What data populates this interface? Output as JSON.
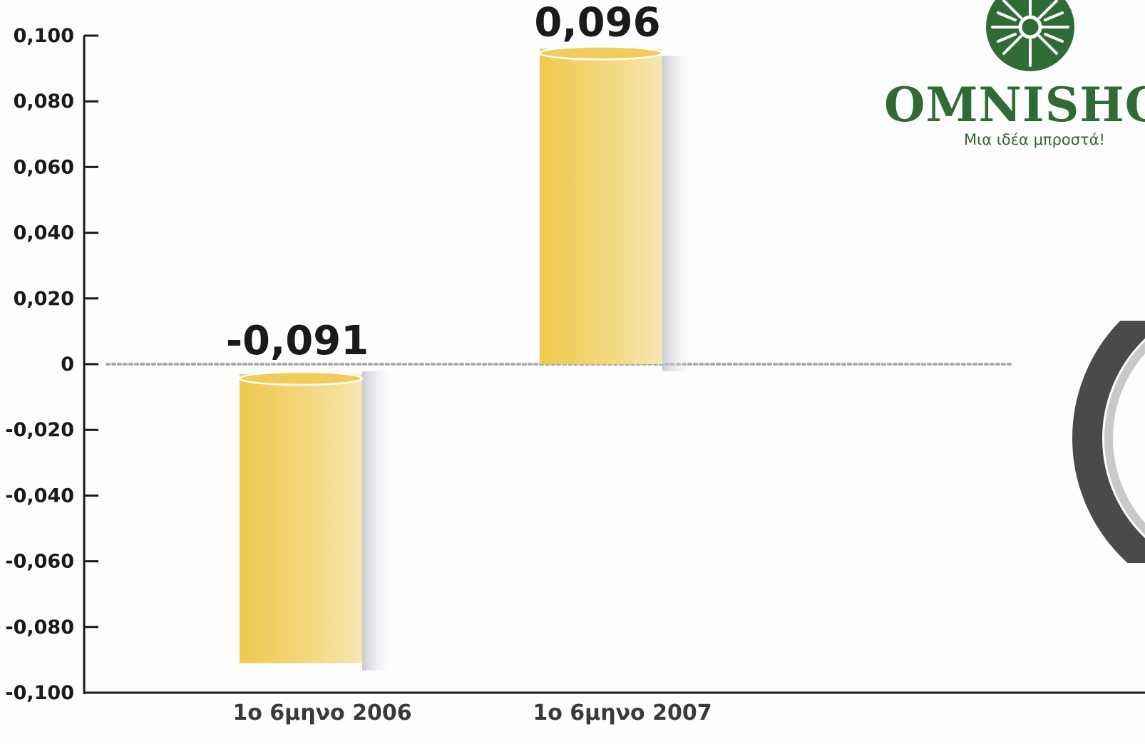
{
  "chart_data": {
    "type": "bar",
    "categories": [
      "1ο 6μηνο 2006",
      "1ο 6μηνο 2007"
    ],
    "values": [
      -0.091,
      0.096
    ],
    "data_labels": [
      "-0,091",
      "0,096"
    ],
    "title": "",
    "xlabel": "",
    "ylabel": "",
    "ylim": [
      -0.1,
      0.1
    ],
    "yticks": [
      0.1,
      0.08,
      0.06,
      0.04,
      0.02,
      0,
      -0.02,
      -0.04,
      -0.06,
      -0.08,
      -0.1
    ],
    "ytick_labels": [
      "0,100",
      "0,080",
      "0,060",
      "0,040",
      "0,020",
      "0",
      "-0,020",
      "-0,040",
      "-0,060",
      "-0,080",
      "-0,100"
    ],
    "zero_line": "dotted",
    "grid": false,
    "bar_color": "#efcb52"
  },
  "logo": {
    "name": "OMNISHOP",
    "tagline": "Μια ιδέα μπροστά!",
    "color": "#2f6b34",
    "icon": "wheel-emblem-icon"
  },
  "decoration": {
    "icon": "tire-ring-icon",
    "color": "#4a4a4d"
  }
}
